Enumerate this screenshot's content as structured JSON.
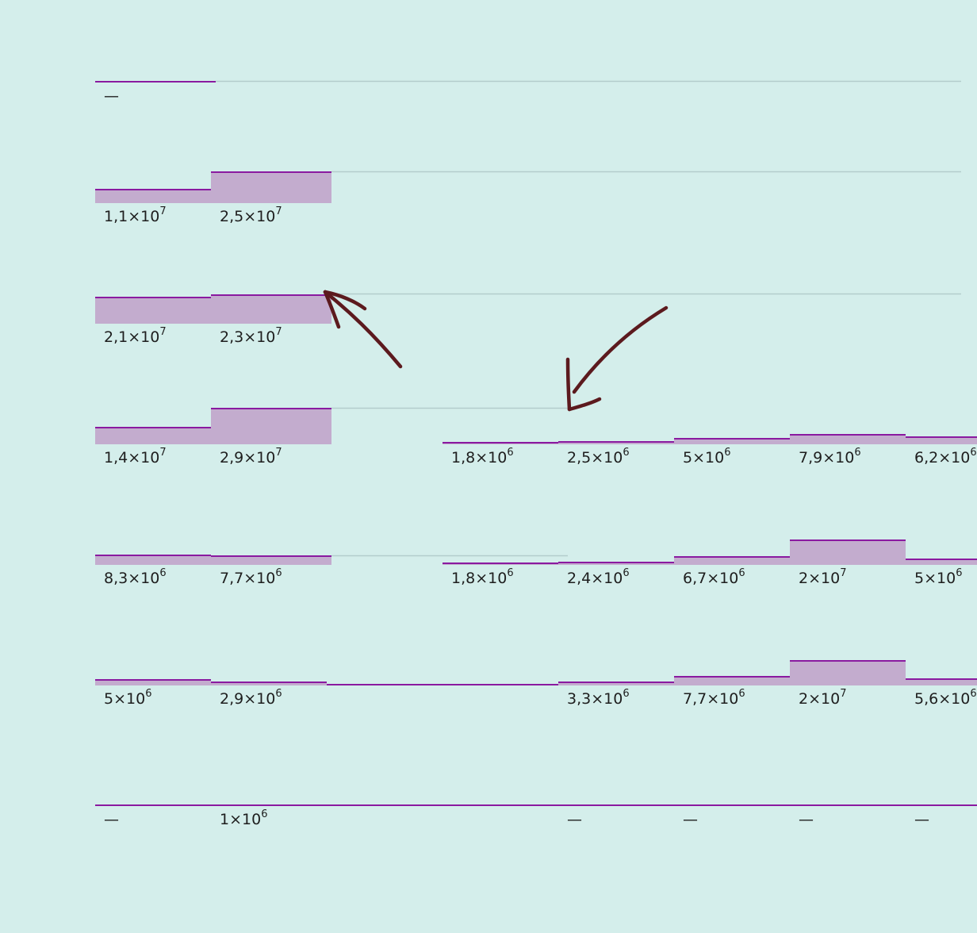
{
  "chart_data": {
    "type": "heatmap",
    "description_style": "horizon-style step cells",
    "colors": {
      "background": "#d4eeeb",
      "fill": "#c3acce",
      "stroke": "#8a1aa0",
      "baseline": "#b3cccc",
      "arrow": "#5c1a1e"
    },
    "rows": [
      {
        "cells": [
          {
            "value": null,
            "label": "—"
          }
        ]
      },
      {
        "cells": [
          {
            "value": 11000000,
            "label": "1,1×10",
            "exp": "7"
          },
          {
            "value": 25000000,
            "label": "2,5×10",
            "exp": "7"
          }
        ]
      },
      {
        "cells": [
          {
            "value": 21000000,
            "label": "2,1×10",
            "exp": "7"
          },
          {
            "value": 23000000,
            "label": "2,3×10",
            "exp": "7"
          }
        ]
      },
      {
        "cells": [
          {
            "value": 14000000,
            "label": "1,4×10",
            "exp": "7"
          },
          {
            "value": 29000000,
            "label": "2,9×10",
            "exp": "7"
          },
          null,
          {
            "value": 1800000,
            "label": "1,8×10",
            "exp": "6"
          },
          {
            "value": 2500000,
            "label": "2,5×10",
            "exp": "6"
          },
          {
            "value": 5000000,
            "label": "5×10",
            "exp": "6"
          },
          {
            "value": 7900000,
            "label": "7,9×10",
            "exp": "6"
          },
          {
            "value": 6200000,
            "label": "6,2×10",
            "exp": "6"
          }
        ]
      },
      {
        "cells": [
          {
            "value": 8300000,
            "label": "8,3×10",
            "exp": "6"
          },
          {
            "value": 7700000,
            "label": "7,7×10",
            "exp": "6"
          },
          null,
          {
            "value": 1800000,
            "label": "1,8×10",
            "exp": "6"
          },
          {
            "value": 2400000,
            "label": "2,4×10",
            "exp": "6"
          },
          {
            "value": 6700000,
            "label": "6,7×10",
            "exp": "6"
          },
          {
            "value": 20000000,
            "label": "2×10",
            "exp": "7"
          },
          {
            "value": 5000000,
            "label": "5×10",
            "exp": "6"
          }
        ]
      },
      {
        "cells": [
          {
            "value": 5000000,
            "label": "5×10",
            "exp": "6"
          },
          {
            "value": 2900000,
            "label": "2,9×10",
            "exp": "6"
          },
          {
            "value": 0,
            "label": ""
          },
          {
            "value": 0,
            "label": ""
          },
          {
            "value": 3300000,
            "label": "3,3×10",
            "exp": "6"
          },
          {
            "value": 7700000,
            "label": "7,7×10",
            "exp": "6"
          },
          {
            "value": 20000000,
            "label": "2×10",
            "exp": "7"
          },
          {
            "value": 5600000,
            "label": "5,6×10",
            "exp": "6"
          }
        ]
      },
      {
        "cells": [
          {
            "value": 0,
            "label": "—"
          },
          {
            "value": 1000000,
            "label": "1×10",
            "exp": "6"
          },
          {
            "value": 0,
            "label": ""
          },
          {
            "value": 0,
            "label": ""
          },
          {
            "value": 0,
            "label": "—"
          },
          {
            "value": 0,
            "label": "—"
          },
          {
            "value": 0,
            "label": "—"
          },
          {
            "value": 0,
            "label": "—"
          }
        ]
      }
    ],
    "annotations": [
      {
        "type": "hand-drawn-arrow",
        "points_to": "row 3, column 2 top edge"
      },
      {
        "type": "hand-drawn-arrow",
        "points_to": "row 4, column 5 top edge"
      }
    ]
  }
}
